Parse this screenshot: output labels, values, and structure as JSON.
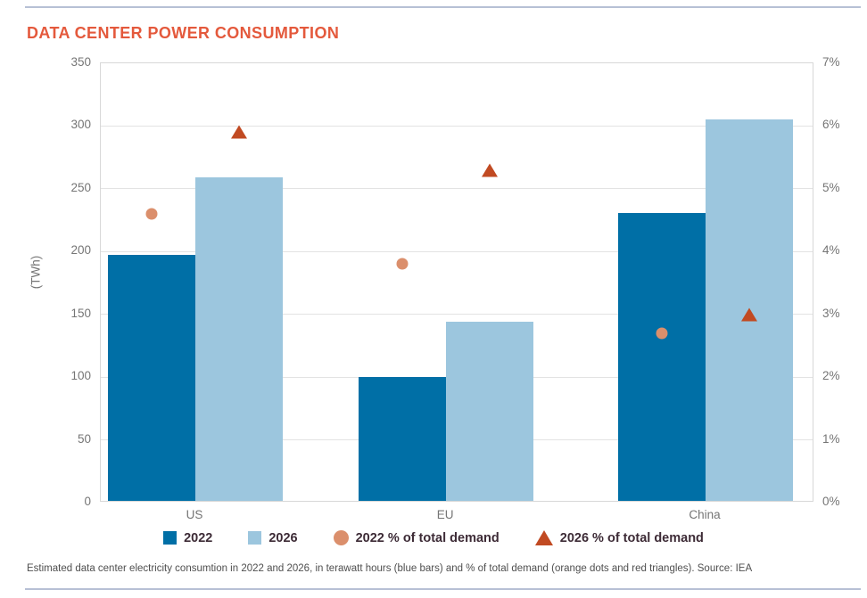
{
  "page": {
    "caption": "Estimated data center electricity consumtion in 2022 and 2026, in terawatt hours (blue bars) and % of total demand (orange dots and red triangles). Source: IEA"
  },
  "colors": {
    "title": "#e4593c",
    "bar_2022": "#006fa6",
    "bar_2026": "#9cc6de",
    "dot_2022": "#db8f6c",
    "triangle_2026": "#c14a22",
    "grid": "#e3e3e3",
    "rule": "#b7c0d5",
    "axis_text": "#757575",
    "legend_text": "#3d2b36"
  },
  "chart_data": {
    "type": "bar",
    "title": "DATA CENTER POWER CONSUMPTION",
    "categories": [
      "US",
      "EU",
      "China"
    ],
    "series": [
      {
        "name": "2022",
        "kind": "bar",
        "axis": "left",
        "color": "#006fa6",
        "values": [
          196,
          99,
          229
        ]
      },
      {
        "name": "2026",
        "kind": "bar",
        "axis": "left",
        "color": "#9cc6de",
        "values": [
          258,
          143,
          304
        ]
      },
      {
        "name": "2022 % of total demand",
        "kind": "circle",
        "axis": "right",
        "color": "#db8f6c",
        "values": [
          4.6,
          3.8,
          2.7
        ]
      },
      {
        "name": "2026 % of total demand",
        "kind": "triangle",
        "axis": "right",
        "color": "#c14a22",
        "values": [
          5.9,
          5.3,
          3.0
        ]
      }
    ],
    "left_axis": {
      "label": "(TWh)",
      "min": 0,
      "max": 350,
      "ticks": [
        350,
        300,
        250,
        200,
        150,
        100,
        50,
        0
      ]
    },
    "right_axis": {
      "min": 0,
      "max": 7,
      "ticks": [
        "7%",
        "6%",
        "5%",
        "4%",
        "3%",
        "2%",
        "1%",
        "0%"
      ],
      "tick_values": [
        7,
        6,
        5,
        4,
        3,
        2,
        1,
        0
      ]
    },
    "legend": [
      {
        "label": "2022",
        "swatch": "square",
        "color": "#006fa6"
      },
      {
        "label": "2026",
        "swatch": "square",
        "color": "#9cc6de"
      },
      {
        "label": "2022 % of total demand",
        "swatch": "circle",
        "color": "#db8f6c"
      },
      {
        "label": "2026 % of total demand",
        "swatch": "triangle",
        "color": "#c14a22"
      }
    ],
    "grid": true,
    "legend_position": "bottom"
  }
}
